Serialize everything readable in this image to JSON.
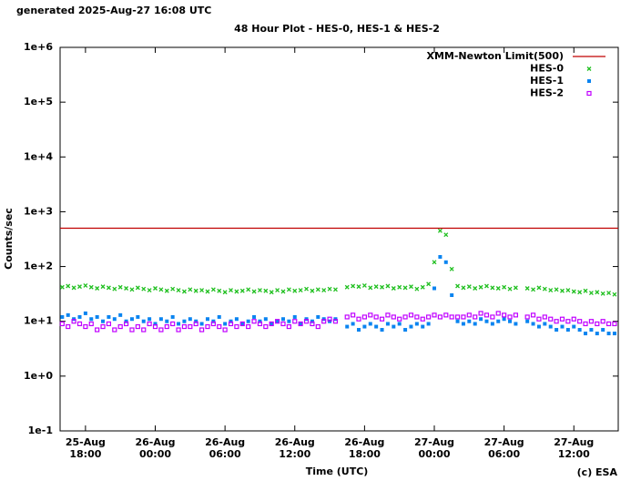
{
  "chart_data": {
    "type": "scatter",
    "header": "generated 2025-Aug-27 16:08 UTC",
    "title": "48 Hour Plot - HES-0, HES-1 & HES-2",
    "xlabel": "Time (UTC)",
    "ylabel": "Counts/sec",
    "footer": "(c) ESA",
    "log_y": true,
    "grid": false,
    "legend": "top-right",
    "xlim": [
      "25-Aug 15:49",
      "27-Aug 15:49"
    ],
    "xticks": [
      "25-Aug 18:00",
      "26-Aug 00:00",
      "26-Aug 06:00",
      "26-Aug 12:00",
      "26-Aug 18:00",
      "27-Aug 00:00",
      "27-Aug 06:00",
      "27-Aug 12:00"
    ],
    "ylim": [
      0.1,
      1000000
    ],
    "yticks": [
      {
        "value": 0.1,
        "label": "1e-1"
      },
      {
        "value": 1,
        "label": "1e+0"
      },
      {
        "value": 10,
        "label": "1e+1"
      },
      {
        "value": 100,
        "label": "1e+2"
      },
      {
        "value": 1000,
        "label": "1e+3"
      },
      {
        "value": 10000,
        "label": "1e+4"
      },
      {
        "value": 100000,
        "label": "1e+5"
      },
      {
        "value": 1000000,
        "label": "1e+6"
      }
    ],
    "limit": {
      "name": "XMM-Newton Limit(500)",
      "value": 500,
      "color": "#c00000"
    },
    "x": [
      "25-Aug 16:00",
      "25-Aug 16:30",
      "25-Aug 17:00",
      "25-Aug 17:30",
      "25-Aug 18:00",
      "25-Aug 18:30",
      "25-Aug 19:00",
      "25-Aug 19:30",
      "25-Aug 20:00",
      "25-Aug 20:30",
      "25-Aug 21:00",
      "25-Aug 21:30",
      "25-Aug 22:00",
      "25-Aug 22:30",
      "25-Aug 23:00",
      "25-Aug 23:30",
      "26-Aug 00:00",
      "26-Aug 00:30",
      "26-Aug 01:00",
      "26-Aug 01:30",
      "26-Aug 02:00",
      "26-Aug 02:30",
      "26-Aug 03:00",
      "26-Aug 03:30",
      "26-Aug 04:00",
      "26-Aug 04:30",
      "26-Aug 05:00",
      "26-Aug 05:30",
      "26-Aug 06:00",
      "26-Aug 06:30",
      "26-Aug 07:00",
      "26-Aug 07:30",
      "26-Aug 08:00",
      "26-Aug 08:30",
      "26-Aug 09:00",
      "26-Aug 09:30",
      "26-Aug 10:00",
      "26-Aug 10:30",
      "26-Aug 11:00",
      "26-Aug 11:30",
      "26-Aug 12:00",
      "26-Aug 12:30",
      "26-Aug 13:00",
      "26-Aug 13:30",
      "26-Aug 14:00",
      "26-Aug 14:30",
      "26-Aug 15:00",
      "26-Aug 15:30",
      "26-Aug 16:00",
      "26-Aug 16:30",
      "26-Aug 17:00",
      "26-Aug 17:30",
      "26-Aug 18:00",
      "26-Aug 18:30",
      "26-Aug 19:00",
      "26-Aug 19:30",
      "26-Aug 20:00",
      "26-Aug 20:30",
      "26-Aug 21:00",
      "26-Aug 21:30",
      "26-Aug 22:00",
      "26-Aug 22:30",
      "26-Aug 23:00",
      "26-Aug 23:30",
      "27-Aug 00:00",
      "27-Aug 00:30",
      "27-Aug 01:00",
      "27-Aug 01:30",
      "27-Aug 02:00",
      "27-Aug 02:30",
      "27-Aug 03:00",
      "27-Aug 03:30",
      "27-Aug 04:00",
      "27-Aug 04:30",
      "27-Aug 05:00",
      "27-Aug 05:30",
      "27-Aug 06:00",
      "27-Aug 06:30",
      "27-Aug 07:00",
      "27-Aug 07:30",
      "27-Aug 08:00",
      "27-Aug 08:30",
      "27-Aug 09:00",
      "27-Aug 09:30",
      "27-Aug 10:00",
      "27-Aug 10:30",
      "27-Aug 11:00",
      "27-Aug 11:30",
      "27-Aug 12:00",
      "27-Aug 12:30",
      "27-Aug 13:00",
      "27-Aug 13:30",
      "27-Aug 14:00",
      "27-Aug 14:30",
      "27-Aug 15:00",
      "27-Aug 15:30"
    ],
    "series": [
      {
        "name": "HES-0",
        "color": "#1fbf1f",
        "marker": "cross",
        "values": [
          42,
          44,
          41,
          43,
          45,
          42,
          40,
          43,
          41,
          39,
          42,
          40,
          38,
          41,
          39,
          37,
          40,
          38,
          36,
          39,
          37,
          35,
          38,
          36,
          37,
          35,
          38,
          36,
          34,
          37,
          35,
          36,
          38,
          35,
          37,
          36,
          34,
          37,
          35,
          38,
          36,
          37,
          39,
          36,
          38,
          37,
          39,
          38,
          null,
          42,
          44,
          43,
          45,
          41,
          43,
          42,
          44,
          40,
          42,
          41,
          43,
          39,
          42,
          48,
          120,
          450,
          380,
          90,
          44,
          41,
          43,
          40,
          42,
          44,
          41,
          40,
          42,
          39,
          41,
          null,
          40,
          38,
          41,
          39,
          37,
          38,
          36,
          37,
          35,
          34,
          36,
          33,
          34,
          32,
          33,
          31
        ]
      },
      {
        "name": "HES-1",
        "color": "#0a84f0",
        "marker": "square",
        "values": [
          12,
          13,
          11,
          12,
          14,
          11,
          12,
          10,
          12,
          11,
          13,
          10,
          11,
          12,
          10,
          11,
          9,
          11,
          10,
          12,
          9,
          10,
          11,
          10,
          9,
          11,
          10,
          12,
          9,
          10,
          11,
          9,
          10,
          12,
          10,
          11,
          9,
          10,
          11,
          10,
          12,
          9,
          11,
          10,
          12,
          11,
          10,
          11,
          null,
          8,
          9,
          7,
          8,
          9,
          8,
          7,
          9,
          8,
          9,
          7,
          8,
          9,
          8,
          9,
          40,
          150,
          120,
          30,
          10,
          9,
          10,
          9,
          11,
          10,
          9,
          10,
          11,
          10,
          9,
          null,
          10,
          9,
          8,
          9,
          8,
          7,
          8,
          7,
          8,
          7,
          6,
          7,
          6,
          7,
          6,
          6
        ]
      },
      {
        "name": "HES-2",
        "color": "#c000ff",
        "marker": "open-square",
        "values": [
          9,
          8,
          10,
          9,
          8,
          9,
          7,
          8,
          9,
          7,
          8,
          9,
          7,
          8,
          7,
          9,
          8,
          7,
          8,
          9,
          7,
          8,
          8,
          9,
          7,
          8,
          9,
          8,
          7,
          9,
          8,
          9,
          8,
          10,
          9,
          8,
          9,
          10,
          9,
          8,
          10,
          9,
          10,
          9,
          8,
          10,
          11,
          10,
          null,
          12,
          13,
          11,
          12,
          13,
          12,
          11,
          13,
          12,
          11,
          12,
          13,
          12,
          11,
          12,
          13,
          12,
          13,
          12,
          12,
          12,
          13,
          12,
          14,
          13,
          12,
          14,
          13,
          12,
          13,
          null,
          12,
          13,
          11,
          12,
          11,
          10,
          11,
          10,
          11,
          10,
          9,
          10,
          9,
          10,
          9,
          9
        ]
      }
    ]
  }
}
